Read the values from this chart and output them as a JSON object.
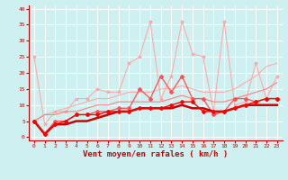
{
  "xlabel": "Vent moyen/en rafales ( km/h )",
  "xlim": [
    -0.5,
    23.5
  ],
  "ylim": [
    -1,
    41
  ],
  "yticks": [
    0,
    5,
    10,
    15,
    20,
    25,
    30,
    35,
    40
  ],
  "xticks": [
    0,
    1,
    2,
    3,
    4,
    5,
    6,
    7,
    8,
    9,
    10,
    11,
    12,
    13,
    14,
    15,
    16,
    17,
    18,
    19,
    20,
    21,
    22,
    23
  ],
  "background_color": "#cff0f0",
  "grid_color": "#ffffff",
  "series": [
    {
      "label": "spiky_light_pink",
      "color": "#ffaaaa",
      "linewidth": 0.8,
      "marker": "*",
      "markersize": 2.5,
      "data_x": [
        0,
        1,
        2,
        3,
        4,
        5,
        6,
        7,
        8,
        9,
        10,
        11,
        12,
        13,
        14,
        15,
        16,
        17,
        18,
        19,
        20,
        21,
        22,
        23
      ],
      "data_y": [
        25,
        4,
        8,
        8,
        12,
        12,
        15,
        14,
        14,
        23,
        25,
        36,
        12,
        19,
        36,
        26,
        25,
        8,
        36,
        10,
        11,
        23,
        12,
        19
      ]
    },
    {
      "label": "trending_light_pink_upper",
      "color": "#ffaaaa",
      "linewidth": 0.8,
      "marker": null,
      "markersize": 0,
      "data_x": [
        0,
        1,
        2,
        3,
        4,
        5,
        6,
        7,
        8,
        9,
        10,
        11,
        12,
        13,
        14,
        15,
        16,
        17,
        18,
        19,
        20,
        21,
        22,
        23
      ],
      "data_y": [
        5,
        7,
        8,
        9,
        10,
        11,
        12,
        12,
        13,
        14,
        14,
        14,
        15,
        15,
        16,
        15,
        14,
        14,
        14,
        15,
        17,
        19,
        22,
        23
      ]
    },
    {
      "label": "trending_pink_mid",
      "color": "#ff8080",
      "linewidth": 0.8,
      "marker": null,
      "markersize": 0,
      "data_x": [
        0,
        1,
        2,
        3,
        4,
        5,
        6,
        7,
        8,
        9,
        10,
        11,
        12,
        13,
        14,
        15,
        16,
        17,
        18,
        19,
        20,
        21,
        22,
        23
      ],
      "data_y": [
        5,
        7,
        7,
        8,
        8,
        9,
        10,
        10,
        11,
        11,
        11,
        11,
        11,
        12,
        13,
        12,
        12,
        11,
        11,
        12,
        13,
        14,
        15,
        17
      ]
    },
    {
      "label": "medium_red_spiky",
      "color": "#ff5050",
      "linewidth": 0.9,
      "marker": "D",
      "markersize": 2.0,
      "data_x": [
        0,
        1,
        2,
        3,
        4,
        5,
        6,
        7,
        8,
        9,
        10,
        11,
        12,
        13,
        14,
        15,
        16,
        17,
        18,
        19,
        20,
        21,
        22,
        23
      ],
      "data_y": [
        5,
        1,
        5,
        5,
        7,
        7,
        8,
        8,
        9,
        9,
        15,
        12,
        19,
        14,
        19,
        12,
        12,
        7,
        8,
        12,
        12,
        11,
        12,
        12
      ]
    },
    {
      "label": "dark_red_smooth",
      "color": "#cc0000",
      "linewidth": 1.8,
      "marker": null,
      "markersize": 0,
      "data_x": [
        0,
        1,
        2,
        3,
        4,
        5,
        6,
        7,
        8,
        9,
        10,
        11,
        12,
        13,
        14,
        15,
        16,
        17,
        18,
        19,
        20,
        21,
        22,
        23
      ],
      "data_y": [
        5,
        1,
        4,
        4,
        5,
        5,
        6,
        7,
        8,
        8,
        9,
        9,
        9,
        9,
        10,
        9,
        9,
        8,
        8,
        9,
        10,
        10,
        10,
        10
      ]
    },
    {
      "label": "red_diamond",
      "color": "#ff0000",
      "linewidth": 1.0,
      "marker": "D",
      "markersize": 2.0,
      "data_x": [
        0,
        1,
        2,
        3,
        4,
        5,
        6,
        7,
        8,
        9,
        10,
        11,
        12,
        13,
        14,
        15,
        16,
        17,
        18,
        19,
        20,
        21,
        22,
        23
      ],
      "data_y": [
        5,
        1,
        4,
        5,
        7,
        7,
        7,
        8,
        8,
        8,
        9,
        9,
        9,
        10,
        11,
        11,
        8,
        8,
        8,
        9,
        10,
        11,
        12,
        12
      ]
    }
  ]
}
